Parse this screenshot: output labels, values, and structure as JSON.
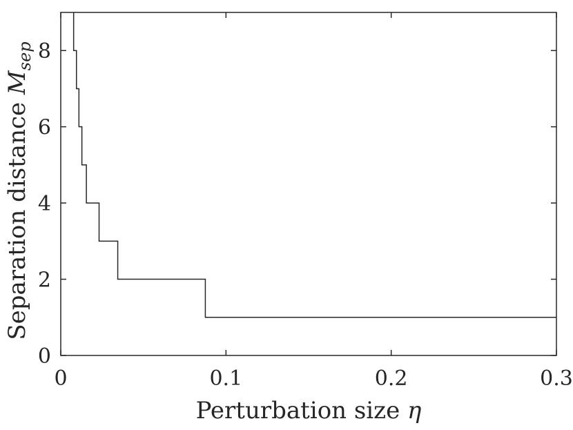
{
  "chart_data": {
    "type": "line",
    "step": true,
    "xlabel": "Perturbation size",
    "xlabel_symbol": "η",
    "ylabel": "Separation distance",
    "ylabel_symbol": "M",
    "ylabel_subscript": "sep",
    "xlim": [
      0,
      0.3
    ],
    "ylim": [
      0,
      9
    ],
    "xticks": [
      0,
      0.1,
      0.2,
      0.3
    ],
    "xtick_labels": [
      "0",
      "0.1",
      "0.2",
      "0.3"
    ],
    "yticks": [
      0,
      2,
      4,
      6,
      8
    ],
    "ytick_labels": [
      "0",
      "2",
      "4",
      "6",
      "8"
    ],
    "grid": false,
    "line_color": "#262626",
    "series": [
      {
        "x": [
          0.0078,
          0.0078,
          0.0095,
          0.0095,
          0.011,
          0.011,
          0.0128,
          0.0128,
          0.0155,
          0.0155,
          0.0197,
          0.0197,
          0.0232,
          0.0232,
          0.0345,
          0.0345,
          0.0875,
          0.0875,
          0.3
        ],
        "y": [
          9,
          8,
          8,
          7,
          7,
          6,
          6,
          5,
          5,
          4,
          4,
          4,
          4,
          3,
          3,
          2,
          2,
          1,
          1
        ]
      }
    ]
  }
}
